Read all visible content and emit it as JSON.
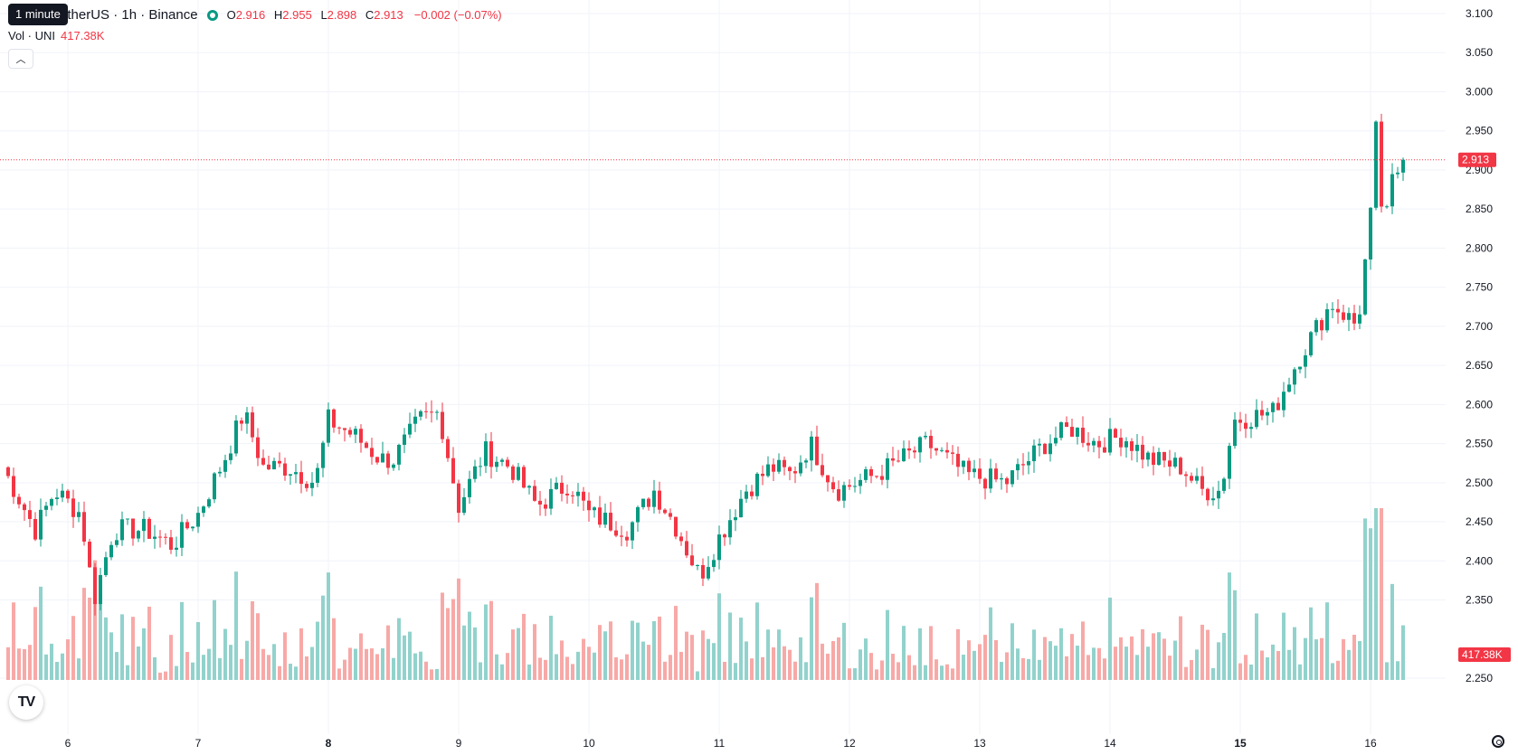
{
  "legend": {
    "symbol": "etherUS · 1h · Binance",
    "open_label": "O",
    "open": "2.916",
    "high_label": "H",
    "high": "2.955",
    "low_label": "L",
    "low": "2.898",
    "close_label": "C",
    "close": "2.913",
    "change": "−0.002 (−0.07%)"
  },
  "tooltip": "1 minute",
  "volume": {
    "label": "Vol · UNI",
    "value": "417.38K"
  },
  "colors": {
    "up": "#089981",
    "down": "#f23645",
    "up_vol": "#92d2cc",
    "down_vol": "#f7a9a7",
    "grid": "#f0f3fa"
  },
  "icons": {
    "logo": "tradingview-logo-icon",
    "settings": "gear-icon",
    "collapse": "chevron-up-icon"
  },
  "chart_data": {
    "type": "candlestick",
    "timeframe": "1h",
    "price_axis": {
      "min": 2.25,
      "max": 3.1,
      "ticks": [
        "3.100",
        "3.050",
        "3.000",
        "2.950",
        "2.900",
        "2.850",
        "2.800",
        "2.750",
        "2.700",
        "2.650",
        "2.600",
        "2.550",
        "2.500",
        "2.450",
        "2.400",
        "2.350",
        "2.250"
      ]
    },
    "last_price": "2.913",
    "last_volume": "417.38K",
    "time_axis": {
      "labels": [
        {
          "text": "6",
          "day": 6,
          "bold": false
        },
        {
          "text": "7",
          "day": 7,
          "bold": false
        },
        {
          "text": "8",
          "day": 8,
          "bold": true
        },
        {
          "text": "9",
          "day": 9,
          "bold": false
        },
        {
          "text": "10",
          "day": 10,
          "bold": false
        },
        {
          "text": "11",
          "day": 11,
          "bold": false
        },
        {
          "text": "12",
          "day": 12,
          "bold": false
        },
        {
          "text": "13",
          "day": 13,
          "bold": false
        },
        {
          "text": "14",
          "day": 14,
          "bold": false
        },
        {
          "text": "15",
          "day": 15,
          "bold": true
        },
        {
          "text": "16",
          "day": 16,
          "bold": false
        }
      ]
    },
    "series_anchors": [
      {
        "day": 5.5,
        "price": 2.52
      },
      {
        "day": 5.75,
        "price": 2.44
      },
      {
        "day": 5.9,
        "price": 2.49
      },
      {
        "day": 6.1,
        "price": 2.46
      },
      {
        "day": 6.2,
        "price": 2.35
      },
      {
        "day": 6.35,
        "price": 2.44
      },
      {
        "day": 6.6,
        "price": 2.44
      },
      {
        "day": 6.8,
        "price": 2.42
      },
      {
        "day": 7.0,
        "price": 2.46
      },
      {
        "day": 7.2,
        "price": 2.53
      },
      {
        "day": 7.35,
        "price": 2.59
      },
      {
        "day": 7.5,
        "price": 2.52
      },
      {
        "day": 7.7,
        "price": 2.52
      },
      {
        "day": 7.9,
        "price": 2.5
      },
      {
        "day": 8.0,
        "price": 2.58
      },
      {
        "day": 8.2,
        "price": 2.56
      },
      {
        "day": 8.4,
        "price": 2.53
      },
      {
        "day": 8.5,
        "price": 2.53
      },
      {
        "day": 8.7,
        "price": 2.58
      },
      {
        "day": 8.85,
        "price": 2.59
      },
      {
        "day": 9.0,
        "price": 2.47
      },
      {
        "day": 9.2,
        "price": 2.54
      },
      {
        "day": 9.4,
        "price": 2.52
      },
      {
        "day": 9.6,
        "price": 2.47
      },
      {
        "day": 9.85,
        "price": 2.5
      },
      {
        "day": 10.0,
        "price": 2.46
      },
      {
        "day": 10.3,
        "price": 2.44
      },
      {
        "day": 10.5,
        "price": 2.49
      },
      {
        "day": 10.65,
        "price": 2.45
      },
      {
        "day": 10.85,
        "price": 2.38
      },
      {
        "day": 11.0,
        "price": 2.43
      },
      {
        "day": 11.2,
        "price": 2.49
      },
      {
        "day": 11.4,
        "price": 2.52
      },
      {
        "day": 11.55,
        "price": 2.51
      },
      {
        "day": 11.7,
        "price": 2.55
      },
      {
        "day": 11.9,
        "price": 2.49
      },
      {
        "day": 12.2,
        "price": 2.51
      },
      {
        "day": 12.4,
        "price": 2.53
      },
      {
        "day": 12.6,
        "price": 2.55
      },
      {
        "day": 12.9,
        "price": 2.51
      },
      {
        "day": 13.2,
        "price": 2.5
      },
      {
        "day": 13.5,
        "price": 2.55
      },
      {
        "day": 13.7,
        "price": 2.57
      },
      {
        "day": 13.9,
        "price": 2.55
      },
      {
        "day": 14.1,
        "price": 2.56
      },
      {
        "day": 14.3,
        "price": 2.53
      },
      {
        "day": 14.55,
        "price": 2.52
      },
      {
        "day": 14.7,
        "price": 2.49
      },
      {
        "day": 14.85,
        "price": 2.49
      },
      {
        "day": 14.95,
        "price": 2.58
      },
      {
        "day": 15.25,
        "price": 2.59
      },
      {
        "day": 15.45,
        "price": 2.66
      },
      {
        "day": 15.7,
        "price": 2.73
      },
      {
        "day": 15.9,
        "price": 2.7
      },
      {
        "day": 16.0,
        "price": 2.84
      },
      {
        "day": 16.05,
        "price": 2.97
      },
      {
        "day": 16.1,
        "price": 2.8
      },
      {
        "day": 16.15,
        "price": 2.88
      },
      {
        "day": 16.25,
        "price": 2.913
      }
    ],
    "volume_bars_shown": true,
    "grid": true,
    "legend_position": "top-left"
  }
}
